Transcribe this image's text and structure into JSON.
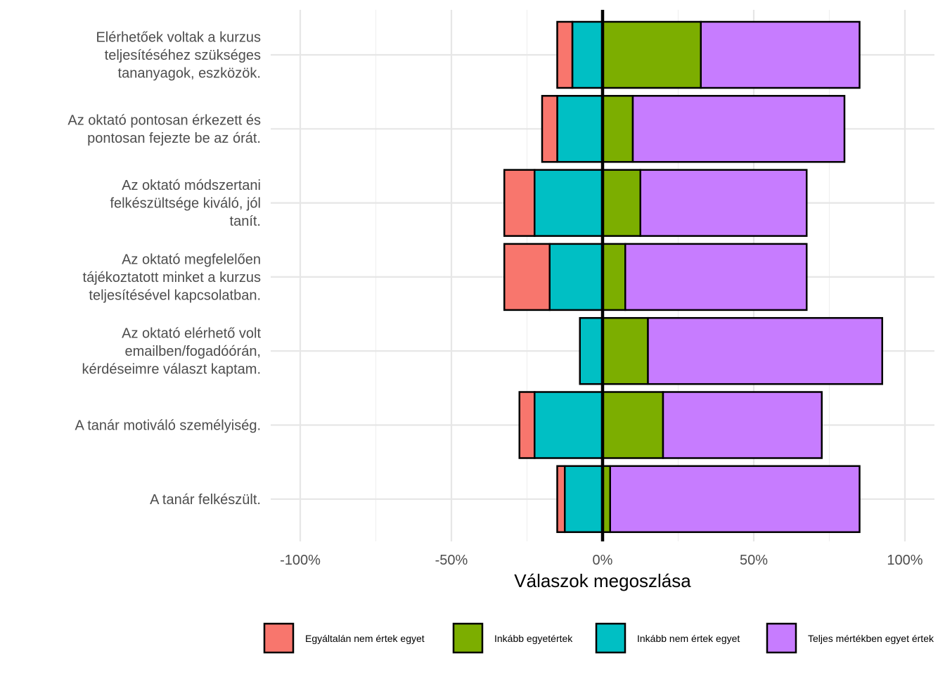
{
  "chart_data": {
    "type": "bar",
    "orientation": "horizontal",
    "stacked": "diverging",
    "xlabel": "Válaszok megoszlása",
    "xlim": [
      -1.0,
      1.1
    ],
    "xticks": [
      -1.0,
      -0.5,
      0.0,
      0.5,
      1.0
    ],
    "xtick_labels": [
      "-100%",
      "-50%",
      "0%",
      "50%",
      "100%"
    ],
    "grid": true,
    "legend_position": "bottom",
    "categories": [
      [
        "Elérhetőek voltak a kurzus",
        "teljesítéséhez szükséges",
        "tananyagok, eszközök."
      ],
      [
        "Az oktató pontosan érkezett és",
        "pontosan fejezte be az órát."
      ],
      [
        "Az oktató módszertani",
        "felkészültsége kiváló, jól",
        "tanít."
      ],
      [
        "Az oktató megfelelően",
        "tájékoztatott minket a kurzus",
        "teljesítésével kapcsolatban."
      ],
      [
        "Az oktató elérhető volt",
        "emailben/fogadóórán,",
        "kérdéseimre választ kaptam."
      ],
      [
        "A tanár motiváló személyiség."
      ],
      [
        "A tanár felkészült."
      ]
    ],
    "series": [
      {
        "name": "Egyáltalán nem értek egyet",
        "color": "#F8766D",
        "values": [
          -0.05,
          -0.05,
          -0.1,
          -0.15,
          0.0,
          -0.05,
          -0.025
        ]
      },
      {
        "name": "Inkább egyetértek",
        "color": "#7CAE00",
        "values": [
          0.325,
          0.1,
          0.125,
          0.075,
          0.15,
          0.2,
          0.025
        ]
      },
      {
        "name": "Inkább nem értek egyet",
        "color": "#00BFC4",
        "values": [
          -0.1,
          -0.15,
          -0.225,
          -0.175,
          -0.075,
          -0.225,
          -0.125
        ]
      },
      {
        "name": "Teljes mértékben egyet értek",
        "color": "#C77CFF",
        "values": [
          0.525,
          0.7,
          0.55,
          0.6,
          0.775,
          0.525,
          0.825
        ]
      }
    ],
    "legend_labels": [
      "Egyáltalán nem értek egyet",
      "Inkább egyetértek",
      "Inkább nem értek egyet",
      "Teljes mértékben egyet értek"
    ]
  }
}
